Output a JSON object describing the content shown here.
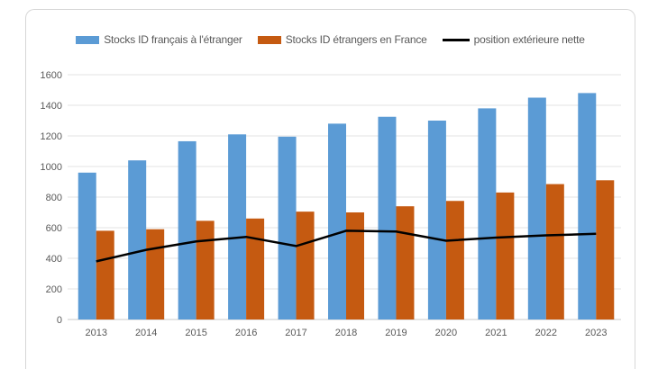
{
  "legend": [
    {
      "label": "Stocks ID français à l'étranger",
      "color": "#5B9BD5",
      "type": "bar"
    },
    {
      "label": "Stocks ID étrangers en France",
      "color": "#C55A11",
      "type": "bar"
    },
    {
      "label": "position extérieure nette",
      "color": "#000000",
      "type": "line"
    }
  ],
  "chart_data": {
    "type": "bar",
    "title": "",
    "xlabel": "",
    "ylabel": "",
    "categories": [
      "2013",
      "2014",
      "2015",
      "2016",
      "2017",
      "2018",
      "2019",
      "2020",
      "2021",
      "2022",
      "2023"
    ],
    "series": [
      {
        "name": "Stocks ID français à l'étranger",
        "type": "bar",
        "color": "#5B9BD5",
        "values": [
          960,
          1040,
          1165,
          1210,
          1195,
          1280,
          1325,
          1300,
          1380,
          1450,
          1480
        ]
      },
      {
        "name": "Stocks ID étrangers en France",
        "type": "bar",
        "color": "#C55A11",
        "values": [
          580,
          590,
          645,
          660,
          705,
          700,
          740,
          775,
          830,
          885,
          910
        ]
      },
      {
        "name": "position extérieure nette",
        "type": "line",
        "color": "#000000",
        "values": [
          380,
          455,
          510,
          540,
          480,
          580,
          575,
          515,
          535,
          550,
          560
        ]
      }
    ],
    "ylim": [
      0,
      1600
    ],
    "ytick_step": 200,
    "yticks": [
      "0",
      "200",
      "400",
      "600",
      "800",
      "1000",
      "1200",
      "1400",
      "1600"
    ],
    "grid": true,
    "legend_position": "top",
    "gridline_color": "#e3e3e3",
    "axis_line_color": "#c9c9c9",
    "tick_label_color": "#595959"
  }
}
